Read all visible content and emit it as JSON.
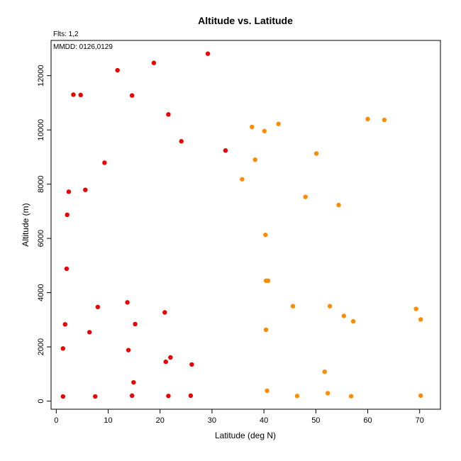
{
  "chart_data": {
    "type": "scatter",
    "title": "Altitude vs. Latitude",
    "subtitle": "Flts: 1,2",
    "annotation": "MMDD: 0126,0129",
    "xlabel": "Latitude (deg N)",
    "ylabel": "Altitude (m)",
    "xlim": [
      -1,
      74
    ],
    "ylim": [
      -300,
      13300
    ],
    "xticks": [
      0,
      10,
      20,
      30,
      40,
      50,
      60,
      70
    ],
    "yticks": [
      0,
      2000,
      4000,
      6000,
      8000,
      10000,
      12000
    ],
    "grid": false,
    "colors": {
      "flight1": "#ee0000",
      "flight2": "#ff8c00"
    },
    "series": [
      {
        "color": "#ee0000",
        "points": [
          [
            1.3,
            170
          ],
          [
            7.5,
            170
          ],
          [
            14.6,
            200
          ],
          [
            21.6,
            190
          ],
          [
            25.9,
            200
          ],
          [
            14.9,
            690
          ],
          [
            21.1,
            1450
          ],
          [
            22.0,
            1610
          ],
          [
            26.1,
            1350
          ],
          [
            1.3,
            1940
          ],
          [
            13.9,
            1880
          ],
          [
            6.4,
            2540
          ],
          [
            1.7,
            2830
          ],
          [
            15.2,
            2840
          ],
          [
            8.0,
            3470
          ],
          [
            13.7,
            3640
          ],
          [
            20.9,
            3270
          ],
          [
            2.0,
            4880
          ],
          [
            2.1,
            6870
          ],
          [
            2.4,
            7720
          ],
          [
            5.6,
            7790
          ],
          [
            9.3,
            8790
          ],
          [
            24.1,
            9580
          ],
          [
            32.6,
            9240
          ],
          [
            21.6,
            10570
          ],
          [
            3.3,
            11300
          ],
          [
            4.7,
            11290
          ],
          [
            14.6,
            11270
          ],
          [
            11.8,
            12200
          ],
          [
            18.8,
            12470
          ],
          [
            29.2,
            12810
          ]
        ]
      },
      {
        "color": "#ff8c00",
        "points": [
          [
            46.4,
            190
          ],
          [
            52.3,
            290
          ],
          [
            56.8,
            180
          ],
          [
            70.2,
            200
          ],
          [
            40.6,
            380
          ],
          [
            51.7,
            1080
          ],
          [
            40.4,
            2630
          ],
          [
            55.4,
            3140
          ],
          [
            57.2,
            2940
          ],
          [
            45.6,
            3500
          ],
          [
            52.7,
            3500
          ],
          [
            69.3,
            3400
          ],
          [
            70.2,
            3010
          ],
          [
            40.4,
            4440
          ],
          [
            40.8,
            4440
          ],
          [
            40.3,
            6130
          ],
          [
            54.4,
            7230
          ],
          [
            48.0,
            7530
          ],
          [
            35.8,
            8180
          ],
          [
            38.3,
            8900
          ],
          [
            50.1,
            9130
          ],
          [
            37.7,
            10110
          ],
          [
            40.1,
            9960
          ],
          [
            42.8,
            10220
          ],
          [
            60.0,
            10400
          ],
          [
            63.2,
            10370
          ]
        ]
      }
    ]
  }
}
